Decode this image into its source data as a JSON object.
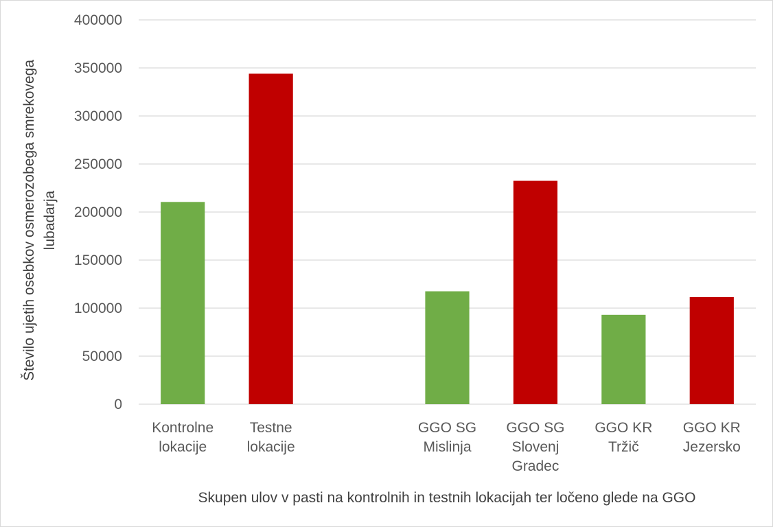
{
  "chart_data": {
    "type": "bar",
    "categories": [
      [
        "Kontrolne",
        "lokacije"
      ],
      [
        "Testne",
        "lokacije"
      ],
      [],
      [
        "GGO SG",
        "Mislinja"
      ],
      [
        "GGO SG",
        "Slovenj",
        "Gradec"
      ],
      [
        "GGO KR",
        "Tržič"
      ],
      [
        "GGO KR",
        "Jezersko"
      ]
    ],
    "values": [
      210500,
      344000,
      null,
      117500,
      232500,
      93000,
      111500
    ],
    "colors": [
      "#70ad47",
      "#c00000",
      null,
      "#70ad47",
      "#c00000",
      "#70ad47",
      "#c00000"
    ],
    "ylim": [
      0,
      400000
    ],
    "yticks": [
      "0",
      "50000",
      "100000",
      "150000",
      "200000",
      "250000",
      "300000",
      "350000",
      "400000"
    ],
    "ylabel": [
      "Število ujetih osebkov osmerozobega smrekovega",
      "lubadarja"
    ],
    "xlabel": "Skupen ulov v pasti na kontrolnih in testnih lokacijah ter ločeno glede na GGO",
    "grid": true,
    "gridColor": "#d9d9d9"
  }
}
